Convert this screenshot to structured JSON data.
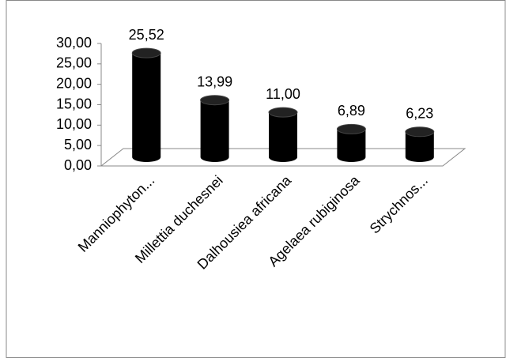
{
  "chart_data": {
    "type": "bar",
    "categories": [
      "Manniophyton...",
      "Millettia duchesnei",
      "Dalhousiea africana",
      "Agelaea rubiginosa",
      "Strychnos..."
    ],
    "values": [
      25.52,
      13.99,
      11.0,
      6.89,
      6.23
    ],
    "value_labels": [
      "25,52",
      "13,99",
      "11,00",
      "6,89",
      "6,23"
    ],
    "color": "#000000",
    "ylim": [
      0,
      30
    ],
    "yticks": [
      {
        "value": 0,
        "label": "0,00"
      },
      {
        "value": 5,
        "label": "5,00"
      },
      {
        "value": 10,
        "label": "10,00"
      },
      {
        "value": 15,
        "label": "15,00"
      },
      {
        "value": 20,
        "label": "20,00"
      },
      {
        "value": 25,
        "label": "25,00"
      },
      {
        "value": 30,
        "label": "30,00"
      }
    ]
  }
}
